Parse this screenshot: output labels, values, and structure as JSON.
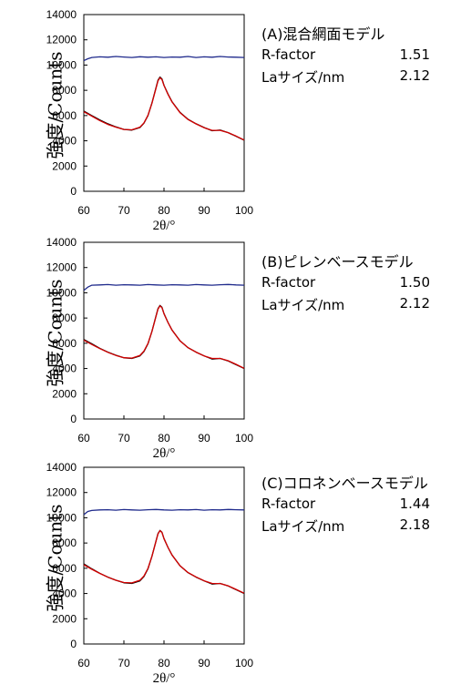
{
  "chart_data": [
    {
      "type": "line",
      "panel_label": "(A)混合網面モデル",
      "stats": [
        {
          "label": "R-factor",
          "value": "1.51"
        },
        {
          "label": "Laサイズ/nm",
          "value": "2.12"
        }
      ],
      "xlabel": "2θ/°",
      "ylabel": "強度/Counts",
      "xlim": [
        60,
        100
      ],
      "ylim": [
        0,
        14000
      ],
      "xticks": [
        "60",
        "70",
        "80",
        "90",
        "100"
      ],
      "yticks": [
        "0",
        "2000",
        "4000",
        "6000",
        "8000",
        "10000",
        "12000",
        "14000"
      ],
      "grid": false,
      "series": [
        {
          "color": "#000000",
          "x": [
            60,
            62,
            64,
            66,
            68,
            70,
            72,
            74,
            75,
            76,
            77,
            78,
            78.5,
            79,
            79.5,
            80,
            81,
            82,
            84,
            86,
            88,
            90,
            92,
            94,
            96,
            98,
            100
          ],
          "y": [
            6350,
            6000,
            5650,
            5350,
            5100,
            4900,
            4850,
            5050,
            5400,
            6000,
            7000,
            8200,
            8800,
            9050,
            8900,
            8400,
            7700,
            7100,
            6250,
            5700,
            5350,
            5050,
            4800,
            4850,
            4650,
            4350,
            4050
          ]
        },
        {
          "color": "#d40000",
          "x": [
            60,
            62,
            64,
            66,
            68,
            70,
            72,
            74,
            75,
            76,
            77,
            78,
            78.5,
            79,
            79.5,
            80,
            81,
            82,
            84,
            86,
            88,
            90,
            92,
            94,
            96,
            98,
            100
          ],
          "y": [
            6300,
            5950,
            5600,
            5300,
            5080,
            4900,
            4870,
            5080,
            5420,
            6020,
            6980,
            8150,
            8750,
            9000,
            8850,
            8380,
            7680,
            7080,
            6230,
            5690,
            5340,
            5040,
            4830,
            4830,
            4650,
            4370,
            4060
          ]
        },
        {
          "color": "#1f2a8c",
          "x": [
            60,
            61,
            62,
            64,
            66,
            68,
            70,
            72,
            74,
            76,
            78,
            80,
            82,
            84,
            86,
            88,
            90,
            92,
            94,
            96,
            98,
            100
          ],
          "y": [
            10350,
            10500,
            10600,
            10650,
            10620,
            10680,
            10640,
            10600,
            10660,
            10620,
            10650,
            10600,
            10640,
            10620,
            10680,
            10600,
            10650,
            10620,
            10680,
            10640,
            10620,
            10600
          ]
        }
      ]
    },
    {
      "type": "line",
      "panel_label": "(B)ピレンベースモデル",
      "stats": [
        {
          "label": "R-factor",
          "value": "1.50"
        },
        {
          "label": "Laサイズ/nm",
          "value": "2.12"
        }
      ],
      "xlabel": "2θ/°",
      "ylabel": "強度/Counts",
      "xlim": [
        60,
        100
      ],
      "ylim": [
        0,
        14000
      ],
      "xticks": [
        "60",
        "70",
        "80",
        "90",
        "100"
      ],
      "yticks": [
        "0",
        "2000",
        "4000",
        "6000",
        "8000",
        "10000",
        "12000",
        "14000"
      ],
      "grid": false,
      "series": [
        {
          "color": "#000000",
          "x": [
            60,
            62,
            64,
            66,
            68,
            70,
            72,
            74,
            75,
            76,
            77,
            78,
            78.5,
            79,
            79.5,
            80,
            81,
            82,
            84,
            86,
            88,
            90,
            92,
            94,
            96,
            98,
            100
          ],
          "y": [
            6300,
            5950,
            5600,
            5300,
            5050,
            4850,
            4800,
            5000,
            5350,
            5950,
            6950,
            8150,
            8750,
            9000,
            8850,
            8350,
            7650,
            7050,
            6200,
            5650,
            5300,
            5000,
            4750,
            4800,
            4600,
            4300,
            4000
          ]
        },
        {
          "color": "#d40000",
          "x": [
            60,
            62,
            64,
            66,
            68,
            70,
            72,
            74,
            75,
            76,
            77,
            78,
            78.5,
            79,
            79.5,
            80,
            81,
            82,
            84,
            86,
            88,
            90,
            92,
            94,
            96,
            98,
            100
          ],
          "y": [
            6250,
            5900,
            5580,
            5280,
            5040,
            4860,
            4830,
            5040,
            5380,
            5980,
            6940,
            8120,
            8700,
            8960,
            8820,
            8340,
            7640,
            7040,
            6190,
            5650,
            5300,
            5000,
            4800,
            4800,
            4620,
            4330,
            4020
          ]
        },
        {
          "color": "#1f2a8c",
          "x": [
            60,
            61,
            62,
            64,
            66,
            68,
            70,
            72,
            74,
            76,
            78,
            80,
            82,
            84,
            86,
            88,
            90,
            92,
            94,
            96,
            98,
            100
          ],
          "y": [
            10200,
            10450,
            10600,
            10620,
            10650,
            10600,
            10640,
            10620,
            10600,
            10650,
            10620,
            10600,
            10640,
            10620,
            10600,
            10650,
            10620,
            10600,
            10640,
            10660,
            10620,
            10600
          ]
        }
      ]
    },
    {
      "type": "line",
      "panel_label": "(C)コロネンベースモデル",
      "stats": [
        {
          "label": "R-factor",
          "value": "1.44"
        },
        {
          "label": "Laサイズ/nm",
          "value": "2.18"
        }
      ],
      "xlabel": "2θ/°",
      "ylabel": "強度/Counts",
      "xlim": [
        60,
        100
      ],
      "ylim": [
        0,
        14000
      ],
      "xticks": [
        "60",
        "70",
        "80",
        "90",
        "100"
      ],
      "yticks": [
        "0",
        "2000",
        "4000",
        "6000",
        "8000",
        "10000",
        "12000",
        "14000"
      ],
      "grid": false,
      "series": [
        {
          "color": "#000000",
          "x": [
            60,
            62,
            64,
            66,
            68,
            70,
            72,
            74,
            75,
            76,
            77,
            78,
            78.5,
            79,
            79.5,
            80,
            81,
            82,
            84,
            86,
            88,
            90,
            92,
            94,
            96,
            98,
            100
          ],
          "y": [
            6350,
            5950,
            5600,
            5300,
            5050,
            4850,
            4800,
            5000,
            5350,
            5950,
            6950,
            8150,
            8750,
            9000,
            8850,
            8350,
            7650,
            7050,
            6200,
            5650,
            5300,
            5000,
            4750,
            4800,
            4600,
            4300,
            4000
          ]
        },
        {
          "color": "#d40000",
          "x": [
            60,
            62,
            64,
            66,
            68,
            70,
            72,
            74,
            75,
            76,
            77,
            78,
            78.5,
            79,
            79.5,
            80,
            81,
            82,
            84,
            86,
            88,
            90,
            92,
            94,
            96,
            98,
            100
          ],
          "y": [
            6280,
            5920,
            5590,
            5290,
            5050,
            4870,
            4840,
            5050,
            5390,
            5990,
            6960,
            8130,
            8720,
            8980,
            8830,
            8350,
            7650,
            7050,
            6200,
            5660,
            5310,
            5010,
            4800,
            4790,
            4610,
            4320,
            4030
          ]
        },
        {
          "color": "#1f2a8c",
          "x": [
            60,
            61,
            62,
            64,
            66,
            68,
            70,
            72,
            74,
            76,
            78,
            80,
            82,
            84,
            86,
            88,
            90,
            92,
            94,
            96,
            98,
            100
          ],
          "y": [
            10250,
            10500,
            10580,
            10620,
            10640,
            10600,
            10650,
            10620,
            10600,
            10640,
            10660,
            10620,
            10600,
            10640,
            10620,
            10650,
            10600,
            10640,
            10620,
            10660,
            10640,
            10620
          ]
        }
      ]
    }
  ]
}
